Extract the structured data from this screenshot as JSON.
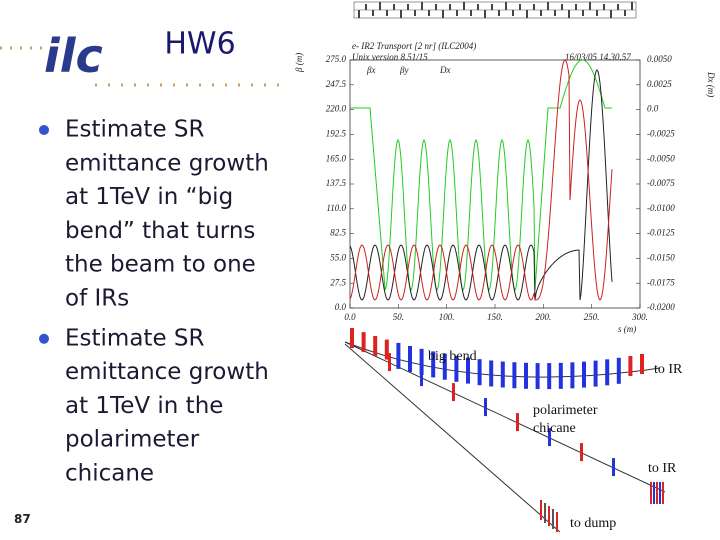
{
  "header": {
    "logo": "ilc",
    "title": "HW6"
  },
  "bullets": [
    {
      "lines": [
        "Estimate SR",
        "emittance growth",
        "at 1TeV in “big",
        "bend” that turns",
        "the beam to one",
        "of IRs"
      ]
    },
    {
      "lines": [
        "Estimate SR",
        "emittance growth",
        "at 1TeV in the",
        "polarimeter",
        "chicane"
      ]
    }
  ],
  "page_number": "87",
  "plot": {
    "title": "e- IR2 Transport [2 nr] (ILC2004)",
    "version": "Unix version 8.51/15",
    "timestamp": "16/03/05  14.30.57",
    "legend": [
      "βx",
      "βy",
      "Dx"
    ],
    "left_axis_label": "β (m)",
    "right_axis_label": "Dx (m)",
    "x_axis_label": "s (m)",
    "left_ticks": [
      "275.0",
      "247.5",
      "220.0",
      "192.5",
      "165.0",
      "137.5",
      "110.0",
      "82.5",
      "55.0",
      "27.5",
      "0.0"
    ],
    "right_ticks": [
      "0.0050",
      "0.0025",
      "0.0",
      "-0.0025",
      "-0.0050",
      "-0.0075",
      "-0.0100",
      "-0.0125",
      "-0.0150",
      "-0.0175",
      "-0.0200"
    ],
    "x_ticks": [
      "0.0",
      "50.",
      "100.",
      "150.",
      "200.",
      "250.",
      "300."
    ]
  },
  "beamline": {
    "labels": [
      "big bend",
      "to IR",
      "polarimeter",
      "chicane",
      "to IR",
      "to dump"
    ]
  }
}
